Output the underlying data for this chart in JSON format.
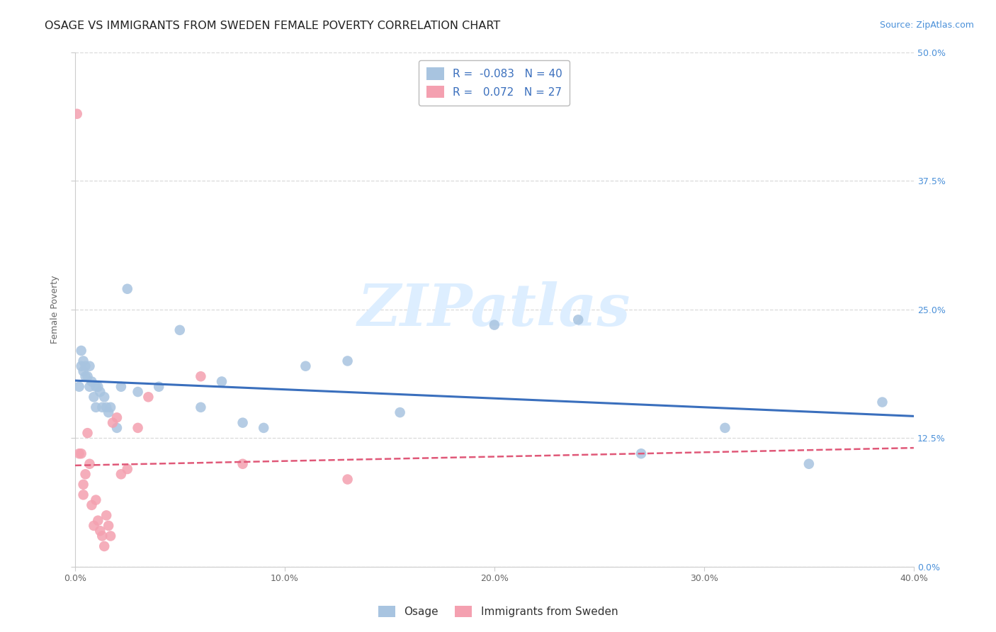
{
  "title": "OSAGE VS IMMIGRANTS FROM SWEDEN FEMALE POVERTY CORRELATION CHART",
  "source": "Source: ZipAtlas.com",
  "ylabel": "Female Poverty",
  "xlim": [
    0.0,
    0.4
  ],
  "ylim": [
    0.0,
    0.5
  ],
  "xticks": [
    0.0,
    0.1,
    0.2,
    0.3,
    0.4
  ],
  "xtick_labels": [
    "0.0%",
    "10.0%",
    "20.0%",
    "30.0%",
    "40.0%"
  ],
  "yticks": [
    0.0,
    0.125,
    0.25,
    0.375,
    0.5
  ],
  "ytick_labels": [
    "0.0%",
    "12.5%",
    "25.0%",
    "37.5%",
    "50.0%"
  ],
  "grid_color": "#d0d0d0",
  "background_color": "#ffffff",
  "osage_R": -0.083,
  "osage_N": 40,
  "sweden_R": 0.072,
  "sweden_N": 27,
  "osage_color": "#a8c4e0",
  "sweden_color": "#f4a0b0",
  "osage_line_color": "#3a6fbd",
  "sweden_line_color": "#e05878",
  "osage_x": [
    0.002,
    0.003,
    0.003,
    0.004,
    0.004,
    0.005,
    0.005,
    0.006,
    0.007,
    0.007,
    0.008,
    0.009,
    0.01,
    0.01,
    0.011,
    0.012,
    0.013,
    0.014,
    0.015,
    0.016,
    0.017,
    0.02,
    0.022,
    0.025,
    0.03,
    0.04,
    0.05,
    0.06,
    0.07,
    0.08,
    0.09,
    0.11,
    0.13,
    0.155,
    0.2,
    0.24,
    0.27,
    0.31,
    0.35,
    0.385
  ],
  "osage_y": [
    0.175,
    0.21,
    0.195,
    0.2,
    0.19,
    0.195,
    0.185,
    0.185,
    0.175,
    0.195,
    0.18,
    0.165,
    0.175,
    0.155,
    0.175,
    0.17,
    0.155,
    0.165,
    0.155,
    0.15,
    0.155,
    0.135,
    0.175,
    0.27,
    0.17,
    0.175,
    0.23,
    0.155,
    0.18,
    0.14,
    0.135,
    0.195,
    0.2,
    0.15,
    0.235,
    0.24,
    0.11,
    0.135,
    0.1,
    0.16
  ],
  "sweden_x": [
    0.001,
    0.002,
    0.003,
    0.004,
    0.004,
    0.005,
    0.006,
    0.007,
    0.008,
    0.009,
    0.01,
    0.011,
    0.012,
    0.013,
    0.014,
    0.015,
    0.016,
    0.017,
    0.018,
    0.02,
    0.022,
    0.025,
    0.03,
    0.035,
    0.06,
    0.08,
    0.13
  ],
  "sweden_y": [
    0.44,
    0.11,
    0.11,
    0.08,
    0.07,
    0.09,
    0.13,
    0.1,
    0.06,
    0.04,
    0.065,
    0.045,
    0.035,
    0.03,
    0.02,
    0.05,
    0.04,
    0.03,
    0.14,
    0.145,
    0.09,
    0.095,
    0.135,
    0.165,
    0.185,
    0.1,
    0.085
  ],
  "watermark_color": "#ddeeff",
  "legend_osage_label": "Osage",
  "legend_sweden_label": "Immigrants from Sweden",
  "title_fontsize": 11.5,
  "source_fontsize": 9,
  "axis_label_fontsize": 9,
  "tick_fontsize": 9,
  "legend_fontsize": 11,
  "right_ytick_color": "#4a90d9"
}
